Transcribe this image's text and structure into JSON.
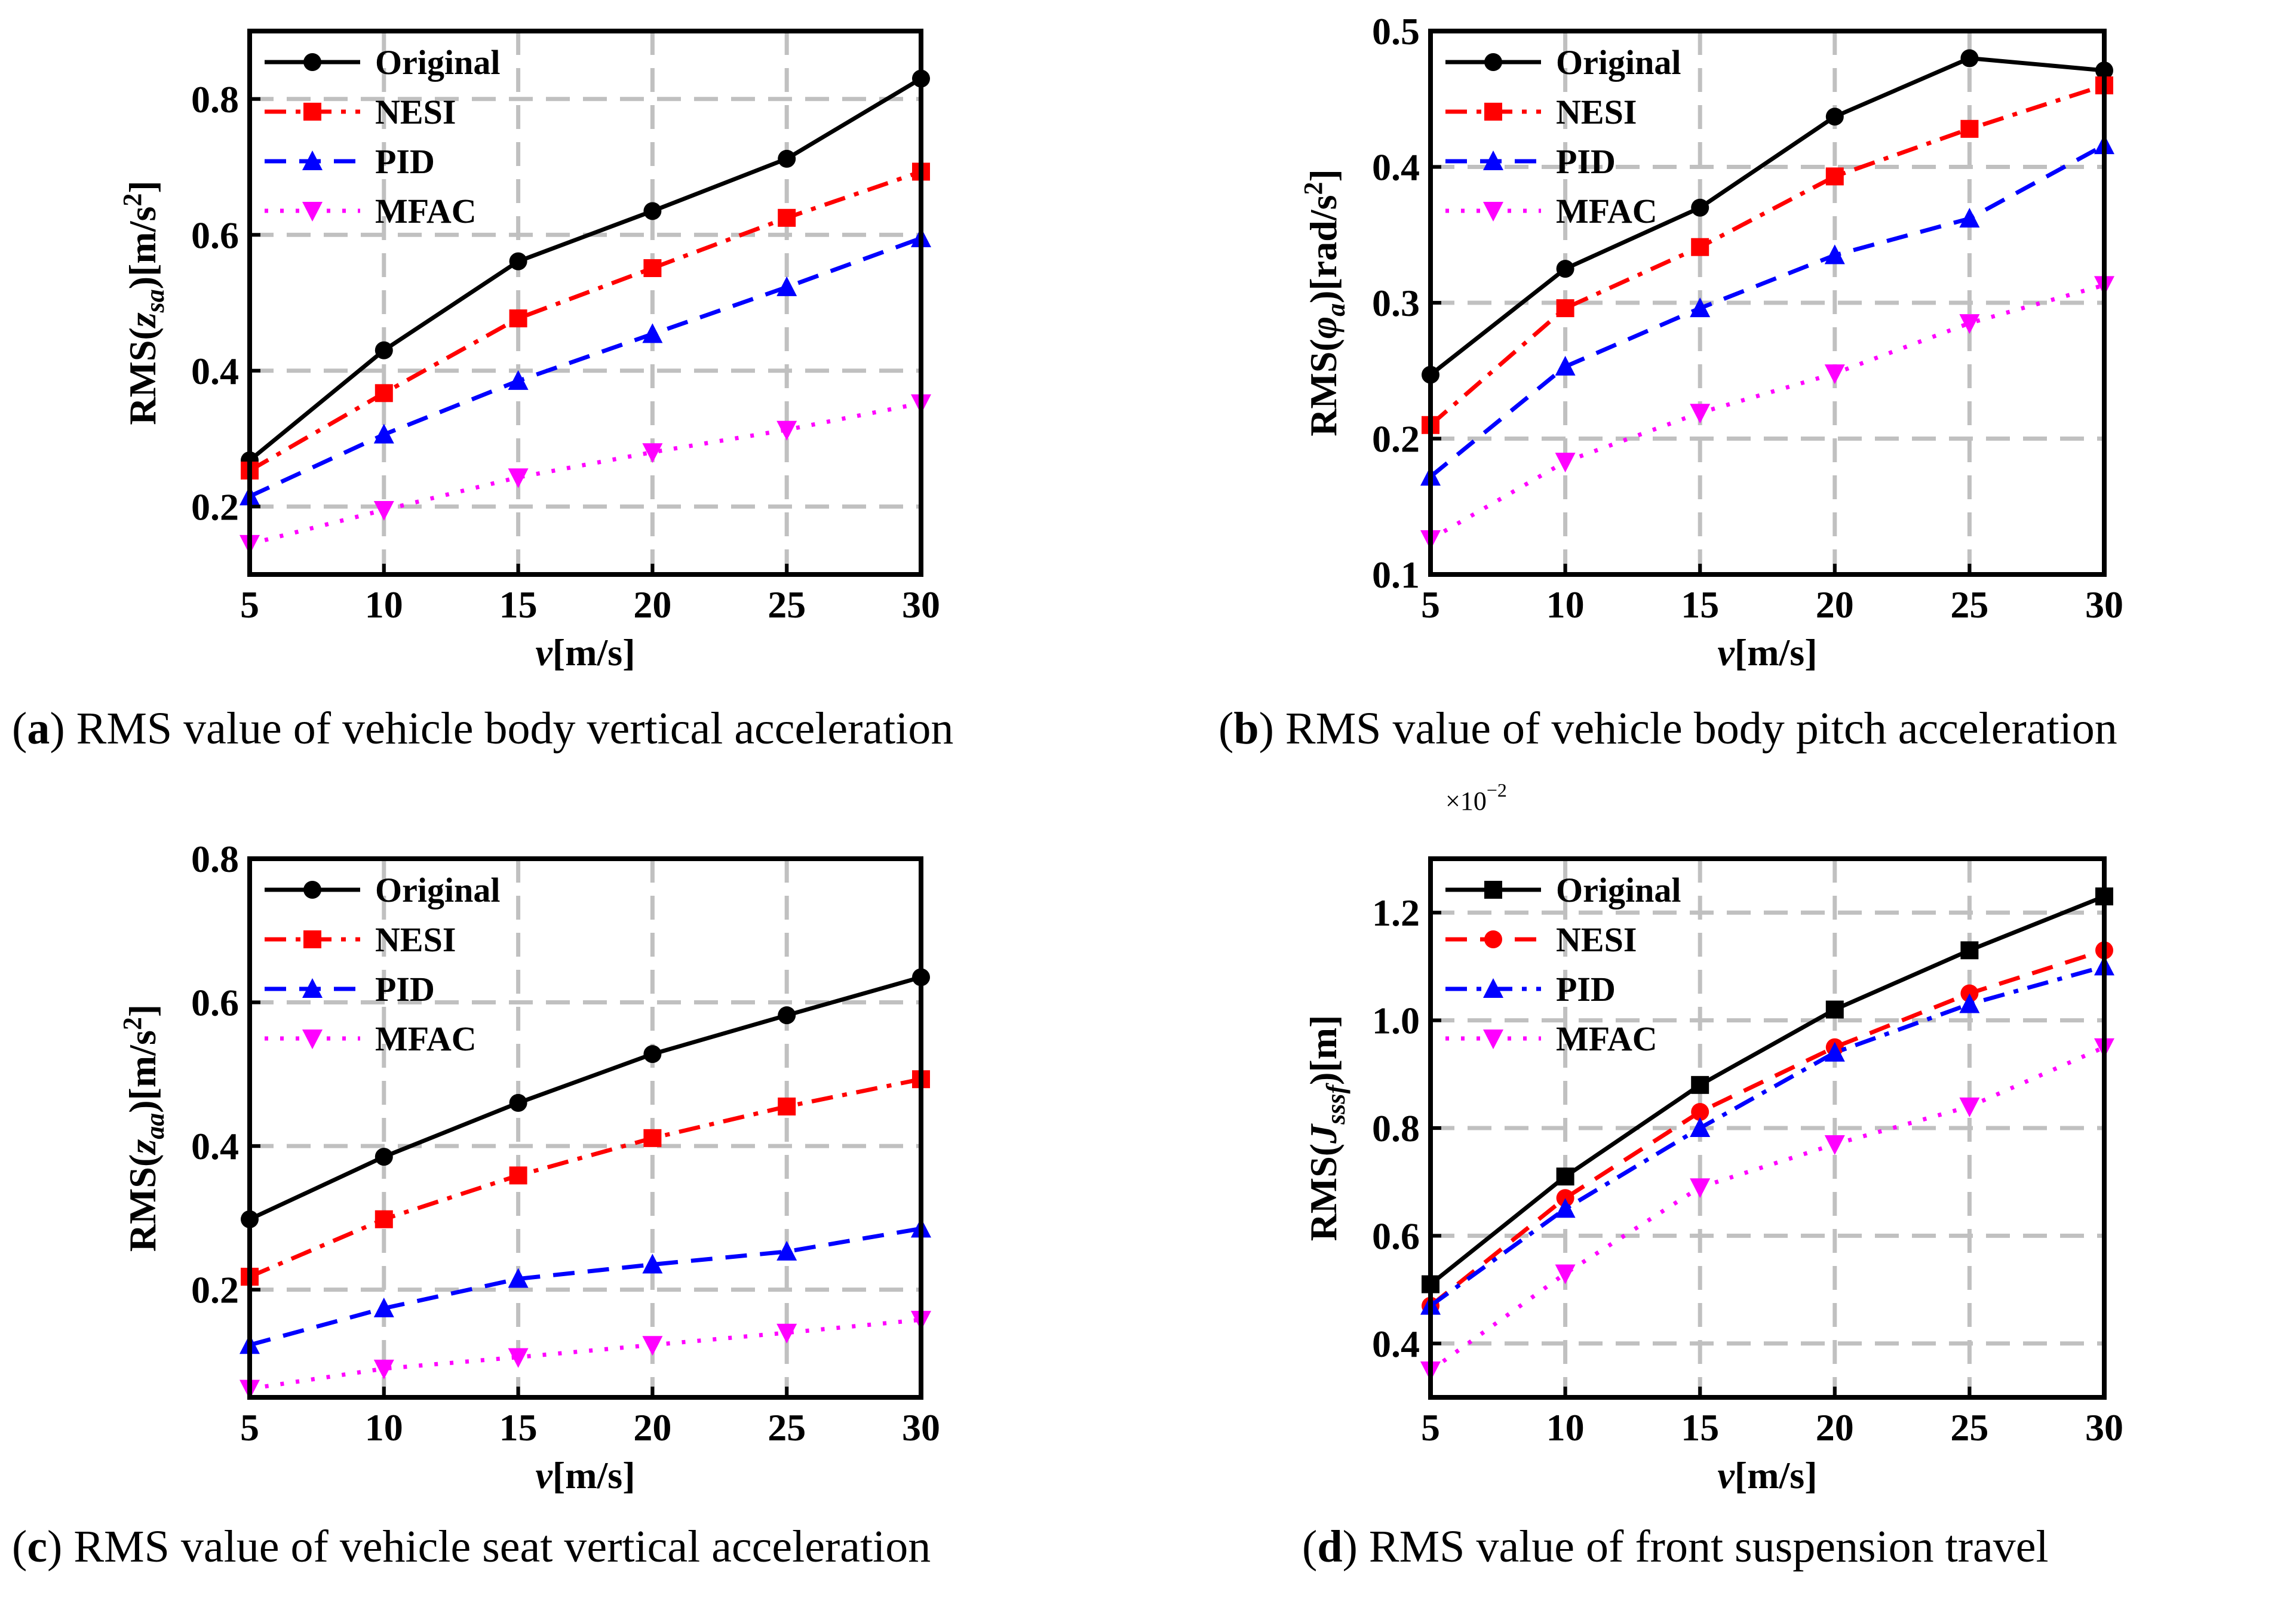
{
  "colors": {
    "original": "#000000",
    "nesi": "#ff0000",
    "pid": "#0000ff",
    "mfac": "#ff00ff",
    "grid": "#c0c0c0"
  },
  "chart_data": [
    {
      "id": "a",
      "type": "line",
      "caption_letter": "a",
      "caption_text": " RMS value of vehicle body vertical acceleration",
      "ylabel_prefix": "RMS(",
      "ylabel_var": "z",
      "ylabel_sub": "sa",
      "ylabel_suffix": ")[m/s",
      "ylabel_sup": "2",
      "ylabel_end": "]",
      "xlabel_var": "v",
      "xlabel_unit": "[m/s]",
      "x": [
        5,
        10,
        15,
        20,
        25,
        30
      ],
      "xticks": [
        "5",
        "10",
        "15",
        "20",
        "25",
        "30"
      ],
      "ylim": [
        0.1,
        0.9
      ],
      "yticks": [
        0.2,
        0.4,
        0.6,
        0.8
      ],
      "ytick_labels": [
        "0.2",
        "0.4",
        "0.6",
        "0.8"
      ],
      "multiplier": "",
      "series": [
        {
          "name": "Original",
          "key": "original",
          "marker": "circle",
          "dash": "solid",
          "values": [
            0.268,
            0.43,
            0.561,
            0.635,
            0.712,
            0.83
          ]
        },
        {
          "name": "NESI",
          "key": "nesi",
          "marker": "square",
          "dash": "dashdot",
          "values": [
            0.253,
            0.367,
            0.477,
            0.551,
            0.625,
            0.693
          ]
        },
        {
          "name": "PID",
          "key": "pid",
          "marker": "triangle-up",
          "dash": "dash",
          "values": [
            0.215,
            0.306,
            0.385,
            0.454,
            0.523,
            0.595
          ]
        },
        {
          "name": "MFAC",
          "key": "mfac",
          "marker": "triangle-down",
          "dash": "dot",
          "values": [
            0.145,
            0.195,
            0.243,
            0.28,
            0.313,
            0.352
          ]
        }
      ]
    },
    {
      "id": "b",
      "type": "line",
      "caption_letter": "b",
      "caption_text": " RMS value of vehicle body pitch acceleration",
      "ylabel_prefix": "RMS(",
      "ylabel_var": "φ",
      "ylabel_sub": "a",
      "ylabel_suffix": ")[rad/s",
      "ylabel_sup": "2",
      "ylabel_end": "]",
      "xlabel_var": "v",
      "xlabel_unit": "[m/s]",
      "x": [
        5,
        10,
        15,
        20,
        25,
        30
      ],
      "xticks": [
        "5",
        "10",
        "15",
        "20",
        "25",
        "30"
      ],
      "ylim": [
        0.1,
        0.5
      ],
      "yticks": [
        0.1,
        0.2,
        0.3,
        0.4,
        0.5
      ],
      "ytick_labels": [
        "0.1",
        "0.2",
        "0.3",
        "0.4",
        "0.5"
      ],
      "multiplier": "",
      "series": [
        {
          "name": "Original",
          "key": "original",
          "marker": "circle",
          "dash": "solid",
          "values": [
            0.247,
            0.325,
            0.37,
            0.437,
            0.48,
            0.471
          ]
        },
        {
          "name": "NESI",
          "key": "nesi",
          "marker": "square",
          "dash": "dashdot",
          "values": [
            0.21,
            0.296,
            0.341,
            0.393,
            0.428,
            0.46
          ]
        },
        {
          "name": "PID",
          "key": "pid",
          "marker": "triangle-up",
          "dash": "dash",
          "values": [
            0.172,
            0.253,
            0.296,
            0.335,
            0.362,
            0.416
          ]
        },
        {
          "name": "MFAC",
          "key": "mfac",
          "marker": "triangle-down",
          "dash": "dot",
          "values": [
            0.126,
            0.183,
            0.219,
            0.248,
            0.285,
            0.313
          ]
        }
      ]
    },
    {
      "id": "c",
      "type": "line",
      "caption_letter": "c",
      "caption_text": " RMS value of vehicle seat vertical acceleration",
      "ylabel_prefix": "RMS(",
      "ylabel_var": "z",
      "ylabel_sub": "aa",
      "ylabel_suffix": ")[m/s",
      "ylabel_sup": "2",
      "ylabel_end": "]",
      "xlabel_var": "v",
      "xlabel_unit": "[m/s]",
      "x": [
        5,
        10,
        15,
        20,
        25,
        30
      ],
      "xticks": [
        "5",
        "10",
        "15",
        "20",
        "25",
        "30"
      ],
      "ylim": [
        0.05,
        0.8
      ],
      "yticks": [
        0.2,
        0.4,
        0.6,
        0.8
      ],
      "ytick_labels": [
        "0.2",
        "0.4",
        "0.6",
        "0.8"
      ],
      "multiplier": "",
      "series": [
        {
          "name": "Original",
          "key": "original",
          "marker": "circle",
          "dash": "solid",
          "values": [
            0.298,
            0.385,
            0.46,
            0.528,
            0.582,
            0.635
          ]
        },
        {
          "name": "NESI",
          "key": "nesi",
          "marker": "square",
          "dash": "dashdot",
          "values": [
            0.218,
            0.298,
            0.359,
            0.411,
            0.455,
            0.493
          ]
        },
        {
          "name": "PID",
          "key": "pid",
          "marker": "triangle-up",
          "dash": "dash",
          "values": [
            0.123,
            0.174,
            0.215,
            0.235,
            0.253,
            0.285
          ]
        },
        {
          "name": "MFAC",
          "key": "mfac",
          "marker": "triangle-down",
          "dash": "dot",
          "values": [
            0.062,
            0.09,
            0.106,
            0.123,
            0.14,
            0.158
          ]
        }
      ]
    },
    {
      "id": "d",
      "type": "line",
      "caption_letter": "d",
      "caption_text": " RMS value of front suspension travel",
      "ylabel_prefix": "RMS(",
      "ylabel_var": "J",
      "ylabel_sub": "sssf",
      "ylabel_suffix": ")[m]",
      "ylabel_sup": "",
      "ylabel_end": "",
      "xlabel_var": "v",
      "xlabel_unit": "[m/s]",
      "x": [
        5,
        10,
        15,
        20,
        25,
        30
      ],
      "xticks": [
        "5",
        "10",
        "15",
        "20",
        "25",
        "30"
      ],
      "ylim": [
        0.3,
        1.3
      ],
      "yticks": [
        0.4,
        0.6,
        0.8,
        1.0,
        1.2
      ],
      "ytick_labels": [
        "0.4",
        "0.6",
        "0.8",
        "1.0",
        "1.2"
      ],
      "multiplier": "×10",
      "multiplier_exp": "−2",
      "series": [
        {
          "name": "Original",
          "key": "original",
          "marker": "square",
          "dash": "solid",
          "values": [
            0.51,
            0.71,
            0.88,
            1.02,
            1.13,
            1.23
          ]
        },
        {
          "name": "NESI",
          "key": "nesi",
          "marker": "circle",
          "dash": "dash",
          "values": [
            0.47,
            0.67,
            0.83,
            0.95,
            1.05,
            1.13
          ]
        },
        {
          "name": "PID",
          "key": "pid",
          "marker": "triangle-up",
          "dash": "dashdot",
          "values": [
            0.47,
            0.65,
            0.8,
            0.94,
            1.03,
            1.1
          ]
        },
        {
          "name": "MFAC",
          "key": "mfac",
          "marker": "triangle-down",
          "dash": "dot",
          "values": [
            0.35,
            0.53,
            0.69,
            0.77,
            0.84,
            0.95
          ]
        }
      ]
    }
  ]
}
